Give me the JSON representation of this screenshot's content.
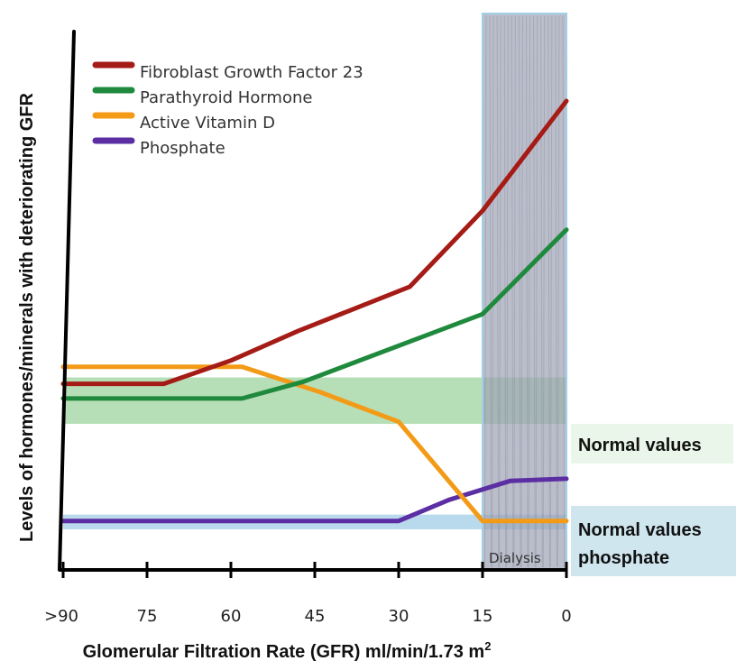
{
  "chart_data": {
    "type": "line",
    "xlabel": "Glomerular Filtration Rate (GFR) ml/min/1.73 m",
    "xlabel_superscript": "2",
    "ylabel": "Levels of hormones/minerals with deteriorating GFR",
    "x_ticks": [
      {
        "value": 90,
        "label": ">90"
      },
      {
        "value": 75,
        "label": "75"
      },
      {
        "value": 60,
        "label": "60"
      },
      {
        "value": 45,
        "label": "45"
      },
      {
        "value": 30,
        "label": "30"
      },
      {
        "value": 15,
        "label": "15"
      },
      {
        "value": 0,
        "label": "0"
      }
    ],
    "xlim": [
      90,
      0
    ],
    "ylim": [
      0,
      10
    ],
    "y_ticks_shown": false,
    "grid": false,
    "legend_position": "top-left",
    "series": [
      {
        "name": "Fibroblast Growth Factor 23",
        "color": "#a51c17",
        "x": [
          90,
          72,
          60,
          48,
          28,
          15,
          0
        ],
        "y": [
          3.3,
          3.3,
          3.85,
          4.55,
          5.6,
          7.4,
          10.0
        ]
      },
      {
        "name": "Parathyroid Hormone",
        "color": "#1f8a3d",
        "x": [
          90,
          58,
          47,
          15,
          0
        ],
        "y": [
          2.95,
          2.95,
          3.35,
          4.95,
          6.95
        ]
      },
      {
        "name": "Active Vitamin D",
        "color": "#f39a17",
        "x": [
          90,
          58,
          44,
          30,
          15,
          0
        ],
        "y": [
          3.7,
          3.7,
          3.1,
          2.4,
          0.05,
          0.05
        ]
      },
      {
        "name": "Phosphate",
        "color": "#5b2ea3",
        "x": [
          90,
          30,
          21,
          10,
          0
        ],
        "y": [
          0.05,
          0.05,
          0.55,
          1.0,
          1.05
        ]
      }
    ],
    "bands": [
      {
        "label": "Normal values",
        "y_range": [
          2.35,
          3.45
        ],
        "color": "#7cc47c"
      },
      {
        "label": "Normal values phosphate",
        "label_lines": [
          "Normal values",
          "phosphate"
        ],
        "y_range": [
          -0.15,
          0.2
        ],
        "color": "#7fb9df"
      }
    ],
    "shaded_region": {
      "label": "Dialysis",
      "x_range": [
        15,
        0
      ],
      "color": "#9ea3b3"
    }
  }
}
